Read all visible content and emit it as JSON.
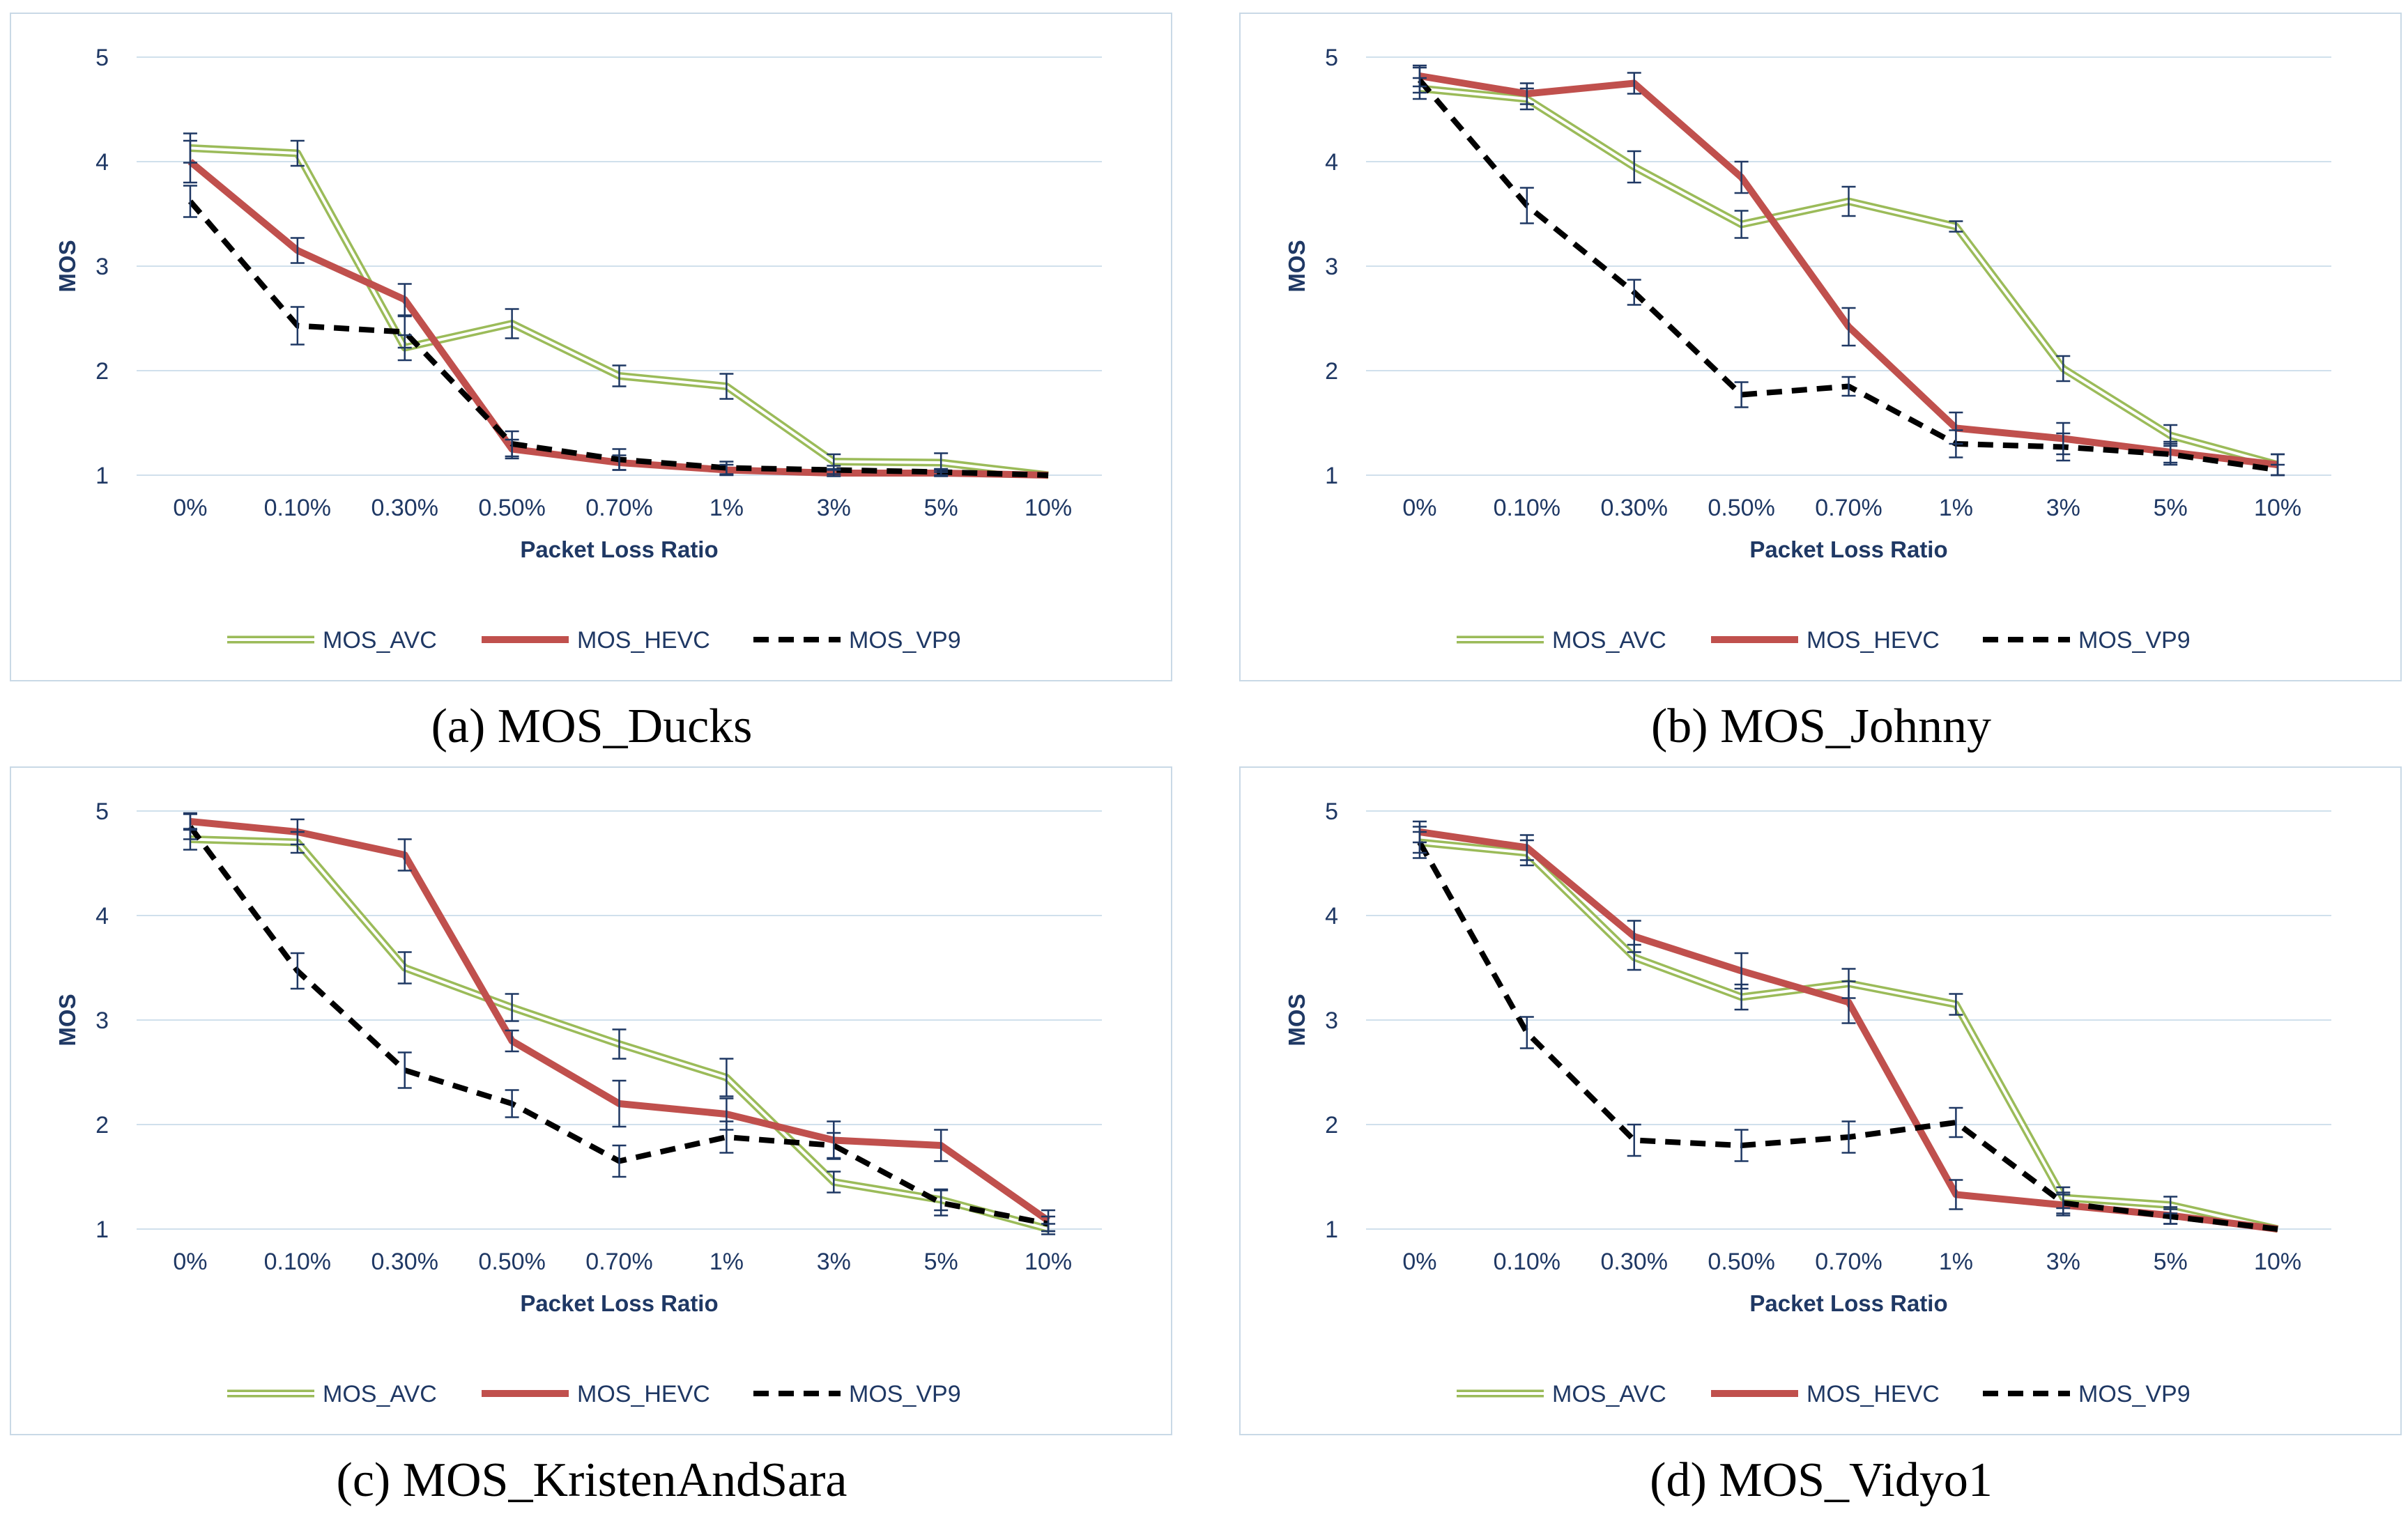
{
  "colors": {
    "avc": "#9bbb59",
    "avc_inner": "#ffffff",
    "hevc": "#c0504d",
    "vp9": "#000000",
    "grid": "#d0e0ec",
    "text": "#1f3864",
    "error_bar": "#1f3864"
  },
  "chart_data": [
    {
      "type": "line",
      "caption": "(a) MOS_Ducks",
      "xlabel": "Packet Loss Ratio",
      "ylabel": "MOS",
      "ylim": [
        1,
        5
      ],
      "yticks": [
        "1",
        "2",
        "3",
        "4",
        "5"
      ],
      "categories": [
        "0%",
        "0.10%",
        "0.30%",
        "0.50%",
        "0.70%",
        "1%",
        "3%",
        "5%",
        "10%"
      ],
      "legend_position": "bottom",
      "grid": true,
      "series": [
        {
          "name": "MOS_AVC",
          "values": [
            4.13,
            4.08,
            2.22,
            2.45,
            1.95,
            1.85,
            1.13,
            1.12,
            1.0
          ],
          "error": [
            0.14,
            0.12,
            0.12,
            0.14,
            0.1,
            0.12,
            0.07,
            0.09,
            0.0
          ]
        },
        {
          "name": "MOS_HEVC",
          "values": [
            4.0,
            3.15,
            2.68,
            1.25,
            1.12,
            1.05,
            1.02,
            1.02,
            1.0
          ],
          "error": [
            0.2,
            0.12,
            0.15,
            0.09,
            0.07,
            0.05,
            0.03,
            0.03,
            0.0
          ]
        },
        {
          "name": "MOS_VP9",
          "values": [
            3.62,
            2.43,
            2.37,
            1.3,
            1.15,
            1.07,
            1.05,
            1.03,
            1.0
          ],
          "error": [
            0.15,
            0.18,
            0.15,
            0.12,
            0.1,
            0.06,
            0.04,
            0.03,
            0.0
          ]
        }
      ]
    },
    {
      "type": "line",
      "caption": "(b) MOS_Johnny",
      "xlabel": "Packet Loss Ratio",
      "ylabel": "MOS",
      "ylim": [
        1,
        5
      ],
      "yticks": [
        "1",
        "2",
        "3",
        "4",
        "5"
      ],
      "categories": [
        "0%",
        "0.10%",
        "0.30%",
        "0.50%",
        "0.70%",
        "1%",
        "3%",
        "5%",
        "10%"
      ],
      "legend_position": "bottom",
      "grid": true,
      "series": [
        {
          "name": "MOS_AVC",
          "values": [
            4.7,
            4.6,
            3.95,
            3.4,
            3.62,
            3.38,
            2.02,
            1.38,
            1.1
          ],
          "error": [
            0.1,
            0.1,
            0.15,
            0.13,
            0.14,
            0.05,
            0.12,
            0.1,
            0.1
          ]
        },
        {
          "name": "MOS_HEVC",
          "values": [
            4.82,
            4.65,
            4.75,
            3.85,
            2.42,
            1.45,
            1.35,
            1.22,
            1.1
          ],
          "error": [
            0.1,
            0.1,
            0.1,
            0.15,
            0.18,
            0.15,
            0.15,
            0.1,
            0.1
          ]
        },
        {
          "name": "MOS_VP9",
          "values": [
            4.78,
            3.58,
            2.75,
            1.77,
            1.85,
            1.3,
            1.27,
            1.2,
            1.05
          ],
          "error": [
            0.12,
            0.17,
            0.12,
            0.12,
            0.09,
            0.13,
            0.13,
            0.1,
            0.05
          ]
        }
      ]
    },
    {
      "type": "line",
      "caption": "(c) MOS_KristenAndSara",
      "xlabel": "Packet Loss Ratio",
      "ylabel": "MOS",
      "ylim": [
        1,
        5
      ],
      "yticks": [
        "1",
        "2",
        "3",
        "4",
        "5"
      ],
      "categories": [
        "0%",
        "0.10%",
        "0.30%",
        "0.50%",
        "0.70%",
        "1%",
        "3%",
        "5%",
        "10%"
      ],
      "legend_position": "bottom",
      "grid": true,
      "series": [
        {
          "name": "MOS_AVC",
          "values": [
            4.73,
            4.7,
            3.5,
            3.12,
            2.77,
            2.45,
            1.45,
            1.28,
            1.0
          ],
          "error": [
            0.1,
            0.1,
            0.15,
            0.13,
            0.14,
            0.18,
            0.1,
            0.1,
            0.05
          ]
        },
        {
          "name": "MOS_HEVC",
          "values": [
            4.9,
            4.8,
            4.58,
            2.8,
            2.2,
            2.1,
            1.85,
            1.8,
            1.08
          ],
          "error": [
            0.08,
            0.12,
            0.15,
            0.1,
            0.22,
            0.15,
            0.18,
            0.15,
            0.1
          ]
        },
        {
          "name": "MOS_VP9",
          "values": [
            4.85,
            3.47,
            2.52,
            2.2,
            1.65,
            1.88,
            1.8,
            1.25,
            1.05
          ],
          "error": [
            0.12,
            0.17,
            0.17,
            0.13,
            0.15,
            0.15,
            0.12,
            0.12,
            0.07
          ]
        }
      ]
    },
    {
      "type": "line",
      "caption": "(d) MOS_Vidyo1",
      "xlabel": "Packet Loss Ratio",
      "ylabel": "MOS",
      "ylim": [
        1,
        5
      ],
      "yticks": [
        "1",
        "2",
        "3",
        "4",
        "5"
      ],
      "categories": [
        "0%",
        "0.10%",
        "0.30%",
        "0.50%",
        "0.70%",
        "1%",
        "3%",
        "5%",
        "10%"
      ],
      "legend_position": "bottom",
      "grid": true,
      "series": [
        {
          "name": "MOS_AVC",
          "values": [
            4.7,
            4.6,
            3.6,
            3.22,
            3.35,
            3.15,
            1.3,
            1.23,
            1.0
          ],
          "error": [
            0.1,
            0.12,
            0.12,
            0.12,
            0.14,
            0.1,
            0.1,
            0.08,
            0.0
          ]
        },
        {
          "name": "MOS_HEVC",
          "values": [
            4.8,
            4.65,
            3.8,
            3.47,
            3.17,
            1.33,
            1.23,
            1.13,
            1.0
          ],
          "error": [
            0.1,
            0.12,
            0.15,
            0.17,
            0.2,
            0.14,
            0.1,
            0.08,
            0.0
          ]
        },
        {
          "name": "MOS_VP9",
          "values": [
            4.7,
            2.88,
            1.85,
            1.8,
            1.88,
            2.02,
            1.25,
            1.12,
            1.0
          ],
          "error": [
            0.15,
            0.15,
            0.15,
            0.15,
            0.15,
            0.14,
            0.1,
            0.07,
            0.0
          ]
        }
      ]
    }
  ]
}
